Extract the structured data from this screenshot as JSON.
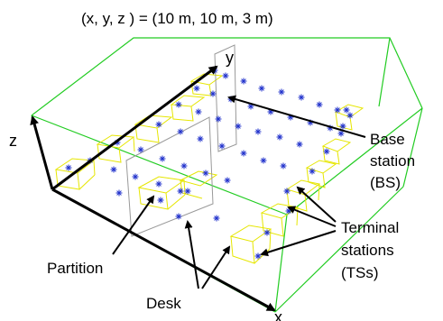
{
  "title": "(x, y, z ) = (10 m, 10 m, 3 m)",
  "axes": {
    "x": "x",
    "y": "y",
    "z": "z"
  },
  "labels": {
    "base_station": [
      "Base",
      "station",
      "(BS)"
    ],
    "terminal_stations": [
      "Terminal",
      "stations",
      "(TSs)"
    ],
    "partition": "Partition",
    "desk": "Desk"
  },
  "colors": {
    "room_edges": "#22cc22",
    "desks": "#e6e600",
    "markers": "#2233cc",
    "partition": "#999999",
    "arrows": "#000000"
  },
  "icons": {
    "marker": "asterisk-marker-icon"
  }
}
